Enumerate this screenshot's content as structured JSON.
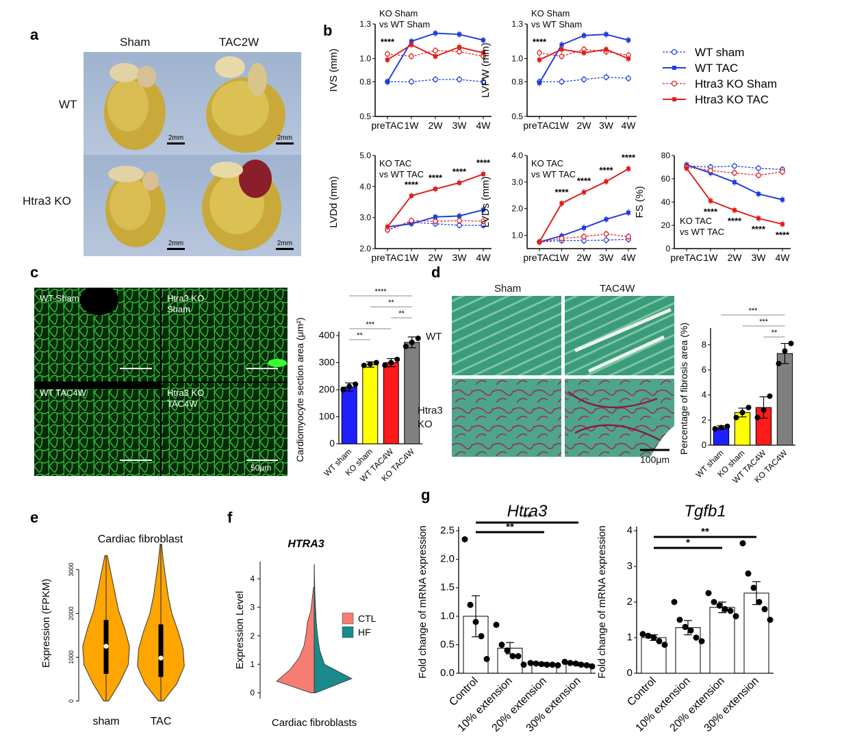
{
  "panels": {
    "a": "a",
    "b": "b",
    "c": "c",
    "d": "d",
    "e": "e",
    "f": "f",
    "g": "g"
  },
  "panel_a": {
    "col_labels": [
      "Sham",
      "TAC2W"
    ],
    "row_labels": [
      "WT",
      "Htra3 KO"
    ],
    "scale_bar": "2mm"
  },
  "panel_b": {
    "legend": [
      "WT sham",
      "WT TAC",
      "Htra3 KO Sham",
      "Htra3 KO TAC"
    ],
    "colors": {
      "blue": "#1f3fe0",
      "red": "#e02020"
    }
  },
  "panel_c": {
    "micro_labels": [
      "WT Sham",
      "Htra3 KO\nSham",
      "WT TAC4W",
      "Htra3 KO\nTAC4W"
    ],
    "scale_bar": "50μm"
  },
  "panel_d": {
    "col_labels": [
      "Sham",
      "TAC4W"
    ],
    "row_labels": [
      "WT",
      "Htra3\nKO"
    ],
    "scale_bar": "100μm"
  },
  "chart_data": [
    {
      "id": "b1",
      "type": "line",
      "ylabel": "IVS (mm)",
      "annotation": [
        "KO Sham",
        "vs WT Sham"
      ],
      "stars": [
        {
          "x": "preTAC",
          "text": "****"
        }
      ],
      "categories": [
        "preTAC",
        "1W",
        "2W",
        "3W",
        "4W"
      ],
      "ylim": [
        0.5,
        1.3
      ],
      "yticks": [
        0.5,
        0.8,
        1.0,
        1.3
      ],
      "series": [
        {
          "name": "WT sham",
          "values": [
            0.8,
            0.8,
            0.82,
            0.82,
            0.8
          ],
          "color": "#1f3fe0",
          "dashed": true,
          "marker": "open-circle"
        },
        {
          "name": "WT TAC",
          "values": [
            0.8,
            1.15,
            1.22,
            1.21,
            1.16
          ],
          "color": "#1f3fe0",
          "dashed": false,
          "marker": "square"
        },
        {
          "name": "Htra3 KO Sham",
          "values": [
            1.04,
            1.02,
            1.07,
            1.06,
            1.02
          ],
          "color": "#e02020",
          "dashed": true,
          "marker": "open-circle"
        },
        {
          "name": "Htra3 KO TAC",
          "values": [
            0.99,
            1.12,
            1.02,
            1.1,
            1.05
          ],
          "color": "#e02020",
          "dashed": false,
          "marker": "square"
        }
      ]
    },
    {
      "id": "b2",
      "type": "line",
      "ylabel": "LVPW (mm)",
      "annotation": [
        "KO Sham",
        "vs WT Sham"
      ],
      "stars": [
        {
          "x": "preTAC",
          "text": "****"
        }
      ],
      "categories": [
        "preTAC",
        "1W",
        "2W",
        "3W",
        "4W"
      ],
      "ylim": [
        0.5,
        1.3
      ],
      "yticks": [
        0.5,
        0.8,
        1.0,
        1.3
      ],
      "series": [
        {
          "name": "WT sham",
          "values": [
            0.8,
            0.8,
            0.82,
            0.84,
            0.83
          ],
          "color": "#1f3fe0",
          "dashed": true,
          "marker": "open-circle"
        },
        {
          "name": "WT TAC",
          "values": [
            0.79,
            1.12,
            1.2,
            1.21,
            1.16
          ],
          "color": "#1f3fe0",
          "dashed": false,
          "marker": "square"
        },
        {
          "name": "Htra3 KO Sham",
          "values": [
            1.05,
            1.02,
            1.08,
            1.06,
            1.03
          ],
          "color": "#e02020",
          "dashed": true,
          "marker": "open-circle"
        },
        {
          "name": "Htra3 KO TAC",
          "values": [
            0.99,
            1.08,
            1.05,
            1.08,
            1.0
          ],
          "color": "#e02020",
          "dashed": false,
          "marker": "square"
        }
      ]
    },
    {
      "id": "b3",
      "type": "line",
      "ylabel": "LVDd (mm)",
      "annotation": [
        "KO TAC",
        "vs WT TAC"
      ],
      "stars": [
        {
          "x": "1W",
          "text": "****"
        },
        {
          "x": "2W",
          "text": "****"
        },
        {
          "x": "3W",
          "text": "****"
        },
        {
          "x": "4W",
          "text": "****"
        }
      ],
      "categories": [
        "preTAC",
        "1W",
        "2W",
        "3W",
        "4W"
      ],
      "ylim": [
        2.0,
        5.0
      ],
      "yticks": [
        2.0,
        3.0,
        4.0,
        5.0
      ],
      "series": [
        {
          "name": "WT sham",
          "values": [
            2.6,
            2.85,
            2.8,
            2.75,
            2.75
          ],
          "color": "#1f3fe0",
          "dashed": true,
          "marker": "open-circle"
        },
        {
          "name": "WT TAC",
          "values": [
            2.7,
            2.8,
            3.02,
            3.05,
            3.25
          ],
          "color": "#1f3fe0",
          "dashed": false,
          "marker": "square"
        },
        {
          "name": "Htra3 KO Sham",
          "values": [
            2.6,
            2.9,
            2.88,
            2.9,
            2.88
          ],
          "color": "#e02020",
          "dashed": true,
          "marker": "open-circle"
        },
        {
          "name": "Htra3 KO TAC",
          "values": [
            2.7,
            3.7,
            3.92,
            4.12,
            4.4
          ],
          "color": "#e02020",
          "dashed": false,
          "marker": "square"
        }
      ]
    },
    {
      "id": "b4",
      "type": "line",
      "ylabel": "LVDs (mm)",
      "annotation": [
        "KO TAC",
        "vs WT TAC"
      ],
      "stars": [
        {
          "x": "1W",
          "text": "****"
        },
        {
          "x": "2W",
          "text": "****"
        },
        {
          "x": "3W",
          "text": "****"
        },
        {
          "x": "4W",
          "text": "****"
        }
      ],
      "categories": [
        "preTAC",
        "1W",
        "2W",
        "3W",
        "4W"
      ],
      "ylim": [
        0.5,
        4.0
      ],
      "yticks": [
        1.0,
        2.0,
        3.0,
        4.0
      ],
      "series": [
        {
          "name": "WT sham",
          "values": [
            0.75,
            0.8,
            0.8,
            0.82,
            0.85
          ],
          "color": "#1f3fe0",
          "dashed": true,
          "marker": "open-circle"
        },
        {
          "name": "WT TAC",
          "values": [
            0.75,
            0.98,
            1.28,
            1.6,
            1.85
          ],
          "color": "#1f3fe0",
          "dashed": false,
          "marker": "square"
        },
        {
          "name": "Htra3 KO Sham",
          "values": [
            0.75,
            0.88,
            0.95,
            1.05,
            0.95
          ],
          "color": "#e02020",
          "dashed": true,
          "marker": "open-circle"
        },
        {
          "name": "Htra3 KO TAC",
          "values": [
            0.75,
            2.2,
            2.62,
            3.02,
            3.5
          ],
          "color": "#e02020",
          "dashed": false,
          "marker": "square"
        }
      ]
    },
    {
      "id": "b5",
      "type": "line",
      "ylabel": "FS (%)",
      "annotation": [
        "KO TAC",
        "vs WT TAC"
      ],
      "stars": [
        {
          "x": "1W",
          "text": "****"
        },
        {
          "x": "2W",
          "text": "****"
        },
        {
          "x": "3W",
          "text": "****"
        },
        {
          "x": "4W",
          "text": "****"
        }
      ],
      "categories": [
        "preTAC",
        "1W",
        "2W",
        "3W",
        "4W"
      ],
      "ylim": [
        0,
        80
      ],
      "yticks": [
        0,
        20,
        40,
        60,
        80
      ],
      "series": [
        {
          "name": "WT sham",
          "values": [
            71,
            70,
            71,
            69,
            68
          ],
          "color": "#1f3fe0",
          "dashed": true,
          "marker": "open-circle"
        },
        {
          "name": "WT TAC",
          "values": [
            72,
            65,
            57,
            47,
            42
          ],
          "color": "#1f3fe0",
          "dashed": false,
          "marker": "square"
        },
        {
          "name": "Htra3 KO Sham",
          "values": [
            70,
            67,
            65,
            63,
            66
          ],
          "color": "#e02020",
          "dashed": true,
          "marker": "open-circle"
        },
        {
          "name": "Htra3 KO TAC",
          "values": [
            69,
            41,
            33,
            26,
            21
          ],
          "color": "#e02020",
          "dashed": false,
          "marker": "square"
        }
      ]
    },
    {
      "id": "c_bar",
      "type": "bar",
      "ylabel": "Cardiomyocyte section area (μm²)",
      "categories": [
        "WT sham",
        "KO sham",
        "WT TAC4W",
        "KO TAC4W"
      ],
      "values": [
        210,
        293,
        300,
        375
      ],
      "errors": [
        15,
        10,
        15,
        20
      ],
      "points": [
        [
          200,
          212,
          220
        ],
        [
          290,
          295,
          300
        ],
        [
          290,
          300,
          312
        ],
        [
          360,
          375,
          390
        ]
      ],
      "colors": [
        "#1f1fff",
        "#ffff00",
        "#ff1a1a",
        "#808080"
      ],
      "ylim": [
        0,
        400
      ],
      "yticks": [
        0,
        100,
        200,
        300,
        400
      ],
      "sig": [
        {
          "from": 0,
          "to": 3,
          "text": "****"
        },
        {
          "from": 1,
          "to": 3,
          "text": "**"
        },
        {
          "from": 2,
          "to": 3,
          "text": "**"
        },
        {
          "from": 0,
          "to": 2,
          "text": "***"
        },
        {
          "from": 0,
          "to": 1,
          "text": "**"
        }
      ]
    },
    {
      "id": "d_bar",
      "type": "bar",
      "ylabel": "Percentage of fibrosis area (%)",
      "categories": [
        "WT sham",
        "KO sham",
        "WT TAC4W",
        "KO TAC4W"
      ],
      "values": [
        1.4,
        2.6,
        3.0,
        7.3
      ],
      "errors": [
        0.15,
        0.35,
        0.85,
        0.8
      ],
      "points": [
        [
          1.3,
          1.4,
          1.5
        ],
        [
          2.2,
          2.6,
          3.0
        ],
        [
          2.2,
          2.8,
          3.9
        ],
        [
          6.5,
          7.5,
          8.1
        ]
      ],
      "colors": [
        "#1f1fff",
        "#ffff00",
        "#ff1a1a",
        "#808080"
      ],
      "ylim": [
        0,
        9
      ],
      "yticks": [
        0,
        2,
        4,
        6,
        8
      ],
      "sig": [
        {
          "from": 0,
          "to": 3,
          "text": "***"
        },
        {
          "from": 1,
          "to": 3,
          "text": "***"
        },
        {
          "from": 2,
          "to": 3,
          "text": "**"
        }
      ]
    },
    {
      "id": "e_violin",
      "type": "violin",
      "title": "Cardiac fibroblast",
      "ylabel": "Expression (FPKM)",
      "categories": [
        "sham",
        "TAC"
      ],
      "medians": [
        1250,
        980
      ],
      "q1": [
        620,
        550
      ],
      "q3": [
        1850,
        1750
      ],
      "min": [
        0,
        0
      ],
      "max": [
        3320,
        3580
      ],
      "ylim": [
        -100,
        3650
      ],
      "yticks": [
        0,
        1000,
        2000,
        3000
      ],
      "color": "#ffa500"
    },
    {
      "id": "f_violin",
      "type": "violin",
      "title": "HTRA3",
      "ylabel": "Expression Level",
      "xlabel": "Cardiac fibroblasts",
      "legend": [
        "CTL",
        "HF"
      ],
      "colors": [
        "#f57d73",
        "#1a8a8a"
      ],
      "ylim": [
        -0.2,
        4.6
      ],
      "yticks": [
        0,
        1,
        2,
        3,
        4
      ],
      "max": [
        3.7,
        4.5
      ]
    },
    {
      "id": "g1",
      "type": "bar",
      "title": "Htra3",
      "ylabel": "Fold change of mRNA expression",
      "categories": [
        "Control",
        "10% extension",
        "20% extension",
        "30% extension"
      ],
      "values": [
        1.0,
        0.44,
        0.16,
        0.16
      ],
      "errors": [
        0.36,
        0.1,
        0.03,
        0.03
      ],
      "points": [
        [
          2.35,
          1.2,
          0.9,
          0.65,
          0.25
        ],
        [
          0.85,
          0.5,
          0.4,
          0.3,
          0.3,
          0.15
        ],
        [
          0.18,
          0.17,
          0.16,
          0.15,
          0.15,
          0.14
        ],
        [
          0.2,
          0.18,
          0.17,
          0.15,
          0.14,
          0.12
        ]
      ],
      "ylim": [
        0,
        2.5
      ],
      "yticks": [
        0.0,
        0.5,
        1.0,
        1.5,
        2.0,
        2.5
      ],
      "sig": [
        {
          "from": 0,
          "to": 2,
          "text": "**"
        },
        {
          "from": 0,
          "to": 3,
          "text": "**"
        }
      ]
    },
    {
      "id": "g2",
      "type": "bar",
      "title": "Tgfb1",
      "ylabel": "Fold change of mRNA expression",
      "categories": [
        "Control",
        "10% extension",
        "20% extension",
        "30% extension"
      ],
      "values": [
        1.0,
        1.28,
        1.85,
        2.25
      ],
      "errors": [
        0.08,
        0.2,
        0.15,
        0.32
      ],
      "points": [
        [
          1.1,
          1.05,
          1.0,
          0.9,
          0.8
        ],
        [
          2.0,
          1.5,
          1.3,
          1.2,
          1.0,
          0.9
        ],
        [
          2.25,
          2.0,
          1.9,
          1.8,
          1.75,
          1.6
        ],
        [
          3.65,
          2.8,
          2.4,
          2.0,
          1.8,
          1.5
        ]
      ],
      "ylim": [
        0,
        4
      ],
      "yticks": [
        0,
        1,
        2,
        3,
        4
      ],
      "sig": [
        {
          "from": 0,
          "to": 2,
          "text": "*"
        },
        {
          "from": 0,
          "to": 3,
          "text": "**"
        }
      ]
    }
  ]
}
